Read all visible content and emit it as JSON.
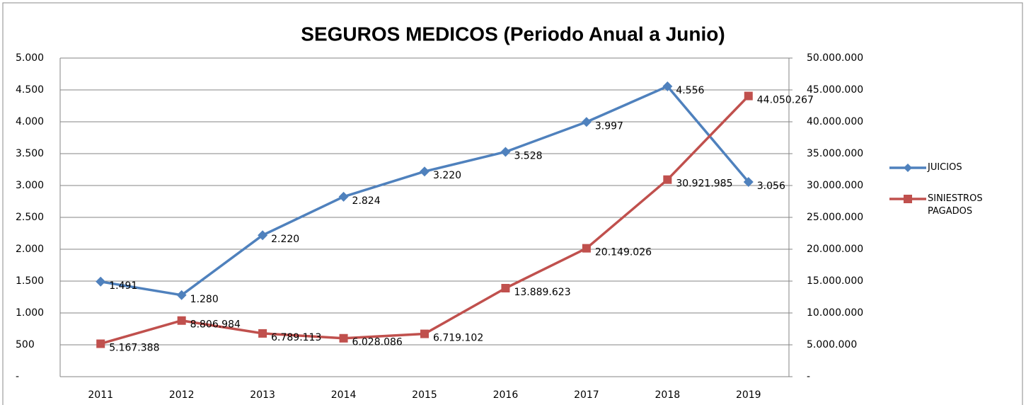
{
  "chart_data": {
    "type": "line",
    "title": "SEGUROS MEDICOS (Periodo Anual a Junio)",
    "categories": [
      "2011",
      "2012",
      "2013",
      "2014",
      "2015",
      "2016",
      "2017",
      "2018",
      "2019"
    ],
    "series": [
      {
        "name": "JUICIOS",
        "color": "#4f81bd",
        "marker": "diamond",
        "values": [
          1491,
          1280,
          2220,
          2824,
          3220,
          3528,
          3997,
          4556,
          3056
        ],
        "value_labels": [
          "1.491",
          "1.280",
          "2.220",
          "2.824",
          "3.220",
          "3.528",
          "3.997",
          "4.556",
          "3.056"
        ]
      },
      {
        "name": "SINIESTROS PAGADOS",
        "color": "#c0504d",
        "marker": "square",
        "axis": "y2",
        "values": [
          5167388,
          8806984,
          6789113,
          6028086,
          6719102,
          13889623,
          20149026,
          30921985,
          44050267
        ],
        "value_labels": [
          "5.167.388",
          "8.806.984",
          "6.789.113",
          "6.028.086",
          "6.719.102",
          "13.889.623",
          "20.149.026",
          "30.921.985",
          "44.050.267"
        ]
      }
    ],
    "ylim": [
      0,
      5000
    ],
    "yticks": [
      {
        "value": 0,
        "label": "-"
      },
      500,
      {
        "value": 1000,
        "label": "1.000"
      },
      {
        "value": 1500,
        "label": "1.500"
      },
      {
        "value": 2000,
        "label": "2.000"
      },
      {
        "value": 2500,
        "label": "2.500"
      },
      {
        "value": 3000,
        "label": "3.000"
      },
      {
        "value": 3500,
        "label": "3.500"
      },
      {
        "value": 4000,
        "label": "4.000"
      },
      {
        "value": 4500,
        "label": "4.500"
      },
      {
        "value": 5000,
        "label": "5.000"
      }
    ],
    "y2lim": [
      0,
      50000000
    ],
    "y2ticks": [
      {
        "value": 0,
        "label": "-"
      },
      {
        "value": 5000000,
        "label": "5.000.000"
      },
      {
        "value": 10000000,
        "label": "10.000.000"
      },
      {
        "value": 15000000,
        "label": "15.000.000"
      },
      {
        "value": 20000000,
        "label": "20.000.000"
      },
      {
        "value": 25000000,
        "label": "25.000.000"
      },
      {
        "value": 30000000,
        "label": "30.000.000"
      },
      {
        "value": 35000000,
        "label": "35.000.000"
      },
      {
        "value": 40000000,
        "label": "40.000.000"
      },
      {
        "value": 45000000,
        "label": "45.000.000"
      },
      {
        "value": 50000000,
        "label": "50.000.000"
      }
    ],
    "grid": true,
    "legend": "right"
  }
}
